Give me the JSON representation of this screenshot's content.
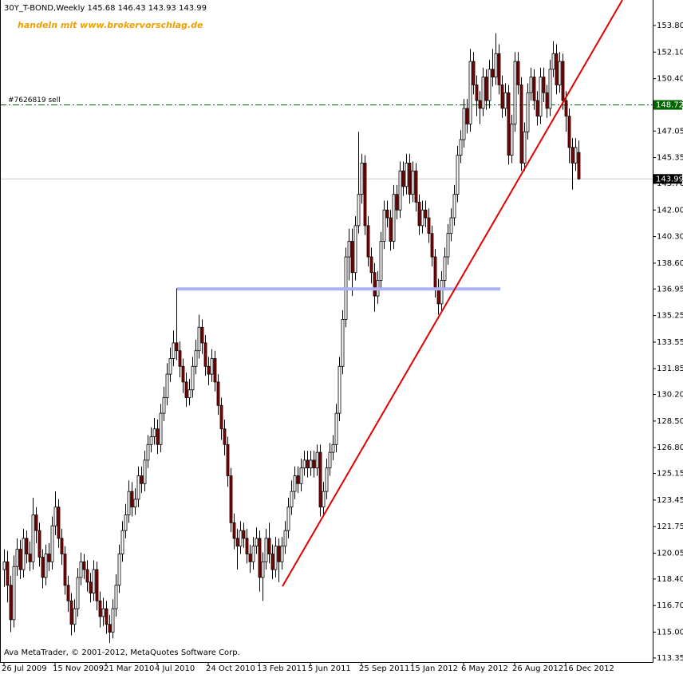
{
  "chart_data": {
    "type": "candlestick",
    "title": "30Y_T-BOND,Weekly  145.68 146.43 143.93 143.99",
    "promo": "handeln mit www.brokervorschlag.de",
    "footer": "Ava MetaTrader, © 2001-2012, MetaQuotes Software Corp.",
    "up_color": "#ffffff",
    "down_color": "#8b0000",
    "wick_color": "#000000",
    "ylim": [
      113.09,
      155.43
    ],
    "yticks": [
      {
        "value": 153.8,
        "label": "153.80"
      },
      {
        "value": 152.1,
        "label": "152.10"
      },
      {
        "value": 150.4,
        "label": "150.40"
      },
      148.75,
      147.05,
      145.35,
      {
        "value": 143.7,
        "label": "143.70"
      },
      {
        "value": 142,
        "label": "142.00"
      },
      {
        "value": 140.3,
        "label": "140.30"
      },
      {
        "value": 138.6,
        "label": "138.60"
      },
      136.95,
      135.25,
      133.55,
      131.85,
      {
        "value": 130.2,
        "label": "130.20"
      },
      {
        "value": 128.5,
        "label": "128.50"
      },
      {
        "value": 126.8,
        "label": "126.80"
      },
      125.15,
      123.45,
      121.75,
      120.05,
      {
        "value": 118.4,
        "label": "118.40"
      },
      {
        "value": 116.7,
        "label": "116.70"
      },
      {
        "value": 115,
        "label": "115.00"
      },
      113.35
    ],
    "categories": [
      "26 Jul 2009",
      null,
      null,
      null,
      null,
      null,
      null,
      null,
      null,
      null,
      null,
      null,
      null,
      null,
      null,
      null,
      "15 Nov 2009",
      null,
      null,
      null,
      null,
      null,
      null,
      null,
      null,
      null,
      null,
      null,
      null,
      null,
      null,
      null,
      "21 Mar 2010",
      null,
      null,
      null,
      null,
      null,
      null,
      null,
      null,
      null,
      null,
      null,
      null,
      null,
      null,
      null,
      "4 Jul 2010",
      null,
      null,
      null,
      null,
      null,
      null,
      null,
      null,
      null,
      null,
      null,
      null,
      null,
      null,
      null,
      "24 Oct 2010",
      null,
      null,
      null,
      null,
      null,
      null,
      null,
      null,
      null,
      null,
      null,
      null,
      null,
      null,
      null,
      "13 Feb 2011",
      null,
      null,
      null,
      null,
      null,
      null,
      null,
      null,
      null,
      null,
      null,
      null,
      null,
      null,
      null,
      "5 Jun 2011",
      null,
      null,
      null,
      null,
      null,
      null,
      null,
      null,
      null,
      null,
      null,
      null,
      null,
      null,
      null,
      "25 Sep 2011",
      null,
      null,
      null,
      null,
      null,
      null,
      null,
      null,
      null,
      null,
      null,
      null,
      null,
      null,
      null,
      "15 Jan 2012",
      null,
      null,
      null,
      null,
      null,
      null,
      null,
      null,
      null,
      null,
      null,
      null,
      null,
      null,
      null,
      "6 May 2012",
      null,
      null,
      null,
      null,
      null,
      null,
      null,
      null,
      null,
      null,
      null,
      null,
      null,
      null,
      null,
      "26 Aug 2012",
      null,
      null,
      null,
      null,
      null,
      null,
      null,
      null,
      null,
      null,
      null,
      null,
      null,
      null,
      null,
      "16 Dec 2012",
      null,
      null,
      null,
      null
    ],
    "ohlc": [
      [
        119.0,
        120.3,
        117.9,
        119.5
      ],
      [
        119.5,
        120.2,
        116.9,
        118.0
      ],
      [
        118.0,
        118.6,
        115.0,
        115.8
      ],
      [
        115.8,
        119.9,
        115.3,
        119.2
      ],
      [
        119.2,
        121.0,
        118.6,
        120.3
      ],
      [
        120.3,
        120.9,
        118.4,
        119.0
      ],
      [
        119.0,
        121.6,
        118.5,
        121.0
      ],
      [
        121.0,
        121.5,
        119.4,
        120.0
      ],
      [
        120.0,
        120.8,
        118.9,
        119.5
      ],
      [
        119.5,
        123.6,
        119.0,
        122.5
      ],
      [
        122.5,
        123.0,
        120.7,
        121.5
      ],
      [
        121.5,
        122.0,
        119.2,
        119.8
      ],
      [
        119.8,
        120.3,
        117.8,
        118.5
      ],
      [
        118.5,
        120.6,
        118.0,
        120.0
      ],
      [
        120.0,
        120.7,
        118.9,
        119.5
      ],
      [
        119.5,
        122.4,
        119.0,
        121.8
      ],
      [
        121.8,
        124.0,
        121.2,
        123.0
      ],
      [
        123.0,
        123.5,
        120.4,
        121.0
      ],
      [
        121.0,
        121.6,
        119.3,
        120.0
      ],
      [
        120.0,
        120.5,
        117.4,
        118.0
      ],
      [
        118.0,
        118.6,
        116.3,
        117.0
      ],
      [
        117.0,
        117.5,
        114.8,
        115.5
      ],
      [
        115.5,
        117.1,
        115.0,
        116.5
      ],
      [
        116.5,
        119.1,
        116.0,
        118.5
      ],
      [
        118.5,
        120.1,
        118.0,
        119.5
      ],
      [
        119.5,
        120.0,
        118.4,
        119.0
      ],
      [
        119.0,
        119.6,
        117.6,
        118.2
      ],
      [
        118.2,
        118.8,
        116.9,
        117.5
      ],
      [
        117.5,
        119.6,
        117.0,
        119.0
      ],
      [
        119.0,
        119.5,
        116.4,
        117.0
      ],
      [
        117.0,
        117.6,
        115.3,
        116.0
      ],
      [
        116.0,
        117.2,
        115.4,
        116.5
      ],
      [
        116.5,
        117.0,
        114.9,
        115.5
      ],
      [
        115.5,
        116.1,
        114.3,
        115.0
      ],
      [
        115.0,
        117.1,
        114.6,
        116.5
      ],
      [
        116.5,
        118.7,
        116.0,
        118.0
      ],
      [
        118.0,
        120.6,
        117.5,
        120.0
      ],
      [
        120.0,
        122.1,
        119.5,
        121.5
      ],
      [
        121.5,
        123.2,
        121.0,
        122.5
      ],
      [
        122.5,
        124.7,
        122.0,
        124.0
      ],
      [
        124.0,
        124.6,
        122.4,
        123.0
      ],
      [
        123.0,
        124.2,
        122.5,
        123.5
      ],
      [
        123.5,
        125.6,
        123.0,
        125.0
      ],
      [
        125.0,
        125.6,
        123.9,
        124.5
      ],
      [
        124.5,
        126.6,
        124.0,
        126.0
      ],
      [
        126.0,
        127.6,
        125.5,
        127.0
      ],
      [
        127.0,
        128.1,
        126.5,
        127.5
      ],
      [
        127.5,
        128.7,
        127.0,
        128.0
      ],
      [
        128.0,
        128.6,
        126.4,
        127.0
      ],
      [
        127.0,
        129.6,
        126.5,
        129.0
      ],
      [
        129.0,
        130.7,
        128.5,
        130.0
      ],
      [
        130.0,
        132.2,
        129.5,
        131.5
      ],
      [
        131.5,
        133.2,
        131.0,
        132.5
      ],
      [
        132.5,
        134.3,
        132.0,
        133.5
      ],
      [
        133.5,
        137.0,
        132.4,
        133.0
      ],
      [
        133.0,
        133.6,
        131.3,
        132.0
      ],
      [
        132.0,
        132.5,
        130.3,
        131.0
      ],
      [
        131.0,
        131.6,
        129.4,
        130.0
      ],
      [
        130.0,
        131.2,
        129.5,
        130.5
      ],
      [
        130.5,
        132.6,
        130.0,
        132.0
      ],
      [
        132.0,
        133.7,
        131.5,
        133.0
      ],
      [
        133.0,
        135.3,
        132.5,
        134.5
      ],
      [
        134.5,
        135.0,
        132.8,
        133.5
      ],
      [
        133.5,
        134.0,
        131.4,
        132.0
      ],
      [
        132.0,
        132.6,
        130.8,
        131.5
      ],
      [
        131.5,
        133.1,
        131.0,
        132.5
      ],
      [
        132.5,
        133.0,
        130.4,
        131.0
      ],
      [
        131.0,
        131.5,
        128.9,
        129.5
      ],
      [
        129.5,
        130.0,
        127.3,
        128.0
      ],
      [
        128.0,
        128.6,
        126.3,
        127.0
      ],
      [
        127.0,
        127.5,
        124.3,
        125.0
      ],
      [
        125.0,
        125.5,
        121.4,
        122.0
      ],
      [
        122.0,
        122.6,
        120.3,
        121.0
      ],
      [
        121.0,
        121.6,
        119.0,
        120.5
      ],
      [
        120.5,
        122.1,
        120.0,
        121.5
      ],
      [
        121.5,
        122.0,
        120.4,
        121.0
      ],
      [
        121.0,
        121.6,
        119.4,
        120.0
      ],
      [
        120.0,
        120.6,
        118.8,
        119.5
      ],
      [
        119.5,
        121.1,
        119.0,
        120.5
      ],
      [
        120.5,
        121.7,
        120.0,
        121.0
      ],
      [
        121.0,
        121.5,
        117.6,
        118.5
      ],
      [
        118.5,
        120.1,
        117.0,
        119.5
      ],
      [
        119.5,
        121.6,
        119.0,
        121.0
      ],
      [
        121.0,
        122.0,
        119.4,
        120.0
      ],
      [
        120.0,
        120.6,
        118.4,
        119.0
      ],
      [
        119.0,
        121.1,
        118.5,
        120.5
      ],
      [
        120.5,
        121.0,
        118.2,
        119.5
      ],
      [
        119.5,
        121.1,
        119.0,
        120.5
      ],
      [
        120.5,
        122.1,
        120.0,
        121.5
      ],
      [
        121.5,
        123.6,
        121.0,
        123.0
      ],
      [
        123.0,
        124.7,
        122.5,
        124.0
      ],
      [
        124.0,
        125.6,
        123.5,
        125.0
      ],
      [
        125.0,
        125.6,
        123.9,
        124.5
      ],
      [
        124.5,
        126.1,
        124.0,
        125.5
      ],
      [
        125.5,
        126.6,
        125.0,
        126.0
      ],
      [
        126.0,
        126.6,
        124.9,
        125.5
      ],
      [
        125.5,
        126.6,
        125.0,
        126.0
      ],
      [
        126.0,
        126.6,
        124.9,
        125.5
      ],
      [
        125.5,
        127.0,
        125.0,
        126.5
      ],
      [
        126.5,
        127.0,
        122.4,
        123.0
      ],
      [
        123.0,
        124.6,
        122.5,
        124.0
      ],
      [
        124.0,
        126.1,
        123.5,
        125.5
      ],
      [
        125.5,
        127.1,
        125.0,
        126.5
      ],
      [
        126.5,
        127.6,
        126.0,
        127.0
      ],
      [
        127.0,
        129.6,
        126.5,
        129.0
      ],
      [
        129.0,
        132.6,
        128.5,
        132.0
      ],
      [
        132.0,
        135.6,
        131.5,
        135.0
      ],
      [
        135.0,
        139.6,
        134.5,
        139.0
      ],
      [
        139.0,
        140.8,
        137.5,
        140.0
      ],
      [
        140.0,
        140.8,
        136.5,
        138.0
      ],
      [
        138.0,
        141.6,
        137.5,
        141.0
      ],
      [
        141.0,
        147.0,
        140.5,
        143.0
      ],
      [
        143.0,
        145.6,
        142.4,
        145.0
      ],
      [
        145.0,
        145.5,
        140.4,
        141.0
      ],
      [
        141.0,
        141.6,
        138.4,
        139.0
      ],
      [
        139.0,
        139.6,
        137.3,
        138.0
      ],
      [
        138.0,
        138.6,
        135.5,
        136.5
      ],
      [
        136.5,
        138.1,
        136.0,
        137.5
      ],
      [
        137.5,
        140.6,
        137.0,
        140.0
      ],
      [
        140.0,
        142.6,
        139.5,
        142.0
      ],
      [
        142.0,
        142.6,
        140.9,
        141.5
      ],
      [
        141.5,
        142.0,
        139.4,
        140.0
      ],
      [
        140.0,
        143.6,
        139.5,
        143.0
      ],
      [
        143.0,
        143.6,
        141.4,
        142.0
      ],
      [
        142.0,
        145.1,
        141.5,
        144.5
      ],
      [
        144.5,
        145.1,
        142.9,
        143.5
      ],
      [
        143.5,
        145.6,
        143.0,
        145.0
      ],
      [
        145.0,
        145.6,
        142.4,
        143.0
      ],
      [
        143.0,
        145.1,
        142.5,
        144.5
      ],
      [
        144.5,
        145.0,
        141.9,
        142.5
      ],
      [
        142.5,
        143.0,
        140.4,
        141.0
      ],
      [
        141.0,
        142.6,
        140.5,
        142.0
      ],
      [
        142.0,
        142.6,
        140.9,
        141.5
      ],
      [
        141.5,
        142.1,
        139.9,
        140.5
      ],
      [
        140.5,
        141.0,
        138.4,
        139.0
      ],
      [
        139.0,
        139.5,
        136.4,
        137.0
      ],
      [
        137.0,
        137.6,
        135.3,
        136.0
      ],
      [
        136.0,
        138.1,
        135.5,
        137.5
      ],
      [
        137.5,
        139.6,
        137.0,
        139.0
      ],
      [
        139.0,
        141.1,
        138.5,
        140.5
      ],
      [
        140.5,
        142.1,
        140.0,
        141.5
      ],
      [
        141.5,
        143.6,
        141.0,
        143.0
      ],
      [
        143.0,
        146.1,
        142.5,
        145.5
      ],
      [
        145.5,
        147.1,
        145.0,
        146.5
      ],
      [
        146.5,
        149.1,
        146.0,
        148.5
      ],
      [
        148.5,
        149.1,
        146.9,
        147.5
      ],
      [
        147.5,
        152.3,
        147.0,
        151.5
      ],
      [
        151.5,
        152.1,
        149.4,
        150.0
      ],
      [
        150.0,
        150.6,
        148.0,
        149.0
      ],
      [
        149.0,
        149.6,
        147.5,
        148.5
      ],
      [
        148.5,
        151.1,
        148.0,
        150.5
      ],
      [
        150.5,
        151.0,
        148.4,
        149.0
      ],
      [
        149.0,
        151.6,
        148.5,
        151.0
      ],
      [
        151.0,
        152.3,
        149.9,
        150.5
      ],
      [
        150.5,
        153.3,
        150.0,
        152.0
      ],
      [
        152.0,
        152.6,
        149.4,
        150.0
      ],
      [
        150.0,
        150.6,
        147.9,
        148.5
      ],
      [
        148.5,
        150.1,
        148.0,
        149.5
      ],
      [
        149.5,
        150.0,
        144.9,
        145.5
      ],
      [
        145.5,
        148.1,
        145.0,
        147.5
      ],
      [
        147.5,
        152.1,
        147.0,
        151.5
      ],
      [
        151.5,
        152.1,
        149.4,
        150.0
      ],
      [
        150.0,
        150.5,
        144.5,
        145.0
      ],
      [
        145.0,
        147.6,
        144.5,
        147.0
      ],
      [
        147.0,
        150.1,
        146.5,
        149.5
      ],
      [
        149.5,
        151.1,
        149.0,
        150.5
      ],
      [
        150.5,
        151.0,
        148.4,
        149.0
      ],
      [
        149.0,
        149.6,
        147.4,
        148.0
      ],
      [
        148.0,
        151.1,
        147.5,
        150.5
      ],
      [
        150.5,
        151.1,
        148.9,
        149.5
      ],
      [
        149.5,
        150.0,
        147.9,
        148.5
      ],
      [
        148.5,
        151.6,
        148.0,
        151.0
      ],
      [
        151.0,
        152.8,
        150.5,
        152.0
      ],
      [
        152.0,
        152.6,
        149.4,
        150.0
      ],
      [
        150.0,
        152.1,
        149.5,
        151.5
      ],
      [
        151.5,
        152.0,
        148.4,
        149.0
      ],
      [
        149.0,
        149.6,
        147.0,
        148.0
      ],
      [
        148.0,
        148.5,
        145.0,
        146.0
      ],
      [
        146.0,
        146.6,
        143.3,
        145.0
      ],
      [
        145.0,
        146.6,
        144.5,
        146.0
      ],
      [
        145.68,
        146.43,
        143.93,
        143.99
      ]
    ],
    "order_line": {
      "label": "#7626819 sell",
      "value": 148.72,
      "color": "#006400"
    },
    "price_line": {
      "value": 143.99,
      "color": "#c8c8c8"
    },
    "level_line": {
      "x": [
        54.25,
        155.5
      ],
      "y": 136.95,
      "color": "#aab0f0"
    },
    "trend_line": {
      "x": [
        87.25,
        193.75
      ],
      "y": [
        117.93,
        155.43
      ],
      "color": "#e00000"
    }
  }
}
